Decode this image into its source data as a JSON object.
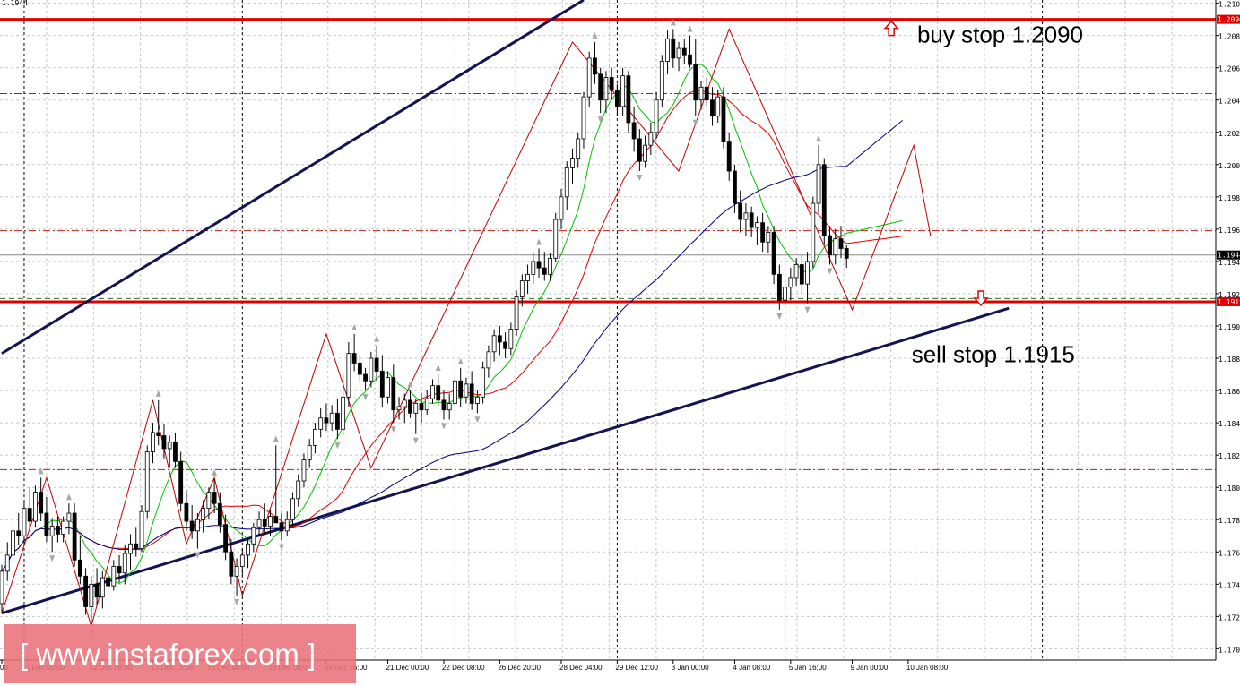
{
  "chart_data": {
    "type": "candlestick",
    "symbol_price_label": "1.1944",
    "ylim": [
      1.1693,
      1.2102
    ],
    "y_ticks": [
      "1.210",
      "1.208",
      "1.206",
      "1.204",
      "1.202",
      "1.200",
      "1.198",
      "1.196",
      "1.194",
      "1.192",
      "1.190",
      "1.188",
      "1.186",
      "1.184",
      "1.182",
      "1.180",
      "1.178",
      "1.176",
      "1.174",
      "1.172",
      "1.170"
    ],
    "x_labels": [
      {
        "label": "00",
        "bar": 0
      },
      {
        "label": "11 Dec 00:00",
        "bar": 4
      },
      {
        "label": "12 Dec 08:00",
        "bar": 16
      },
      {
        "label": "13 Dec 16:00",
        "bar": 27
      },
      {
        "label": "15 Dec 00:00",
        "bar": 37
      },
      {
        "label": "18 Dec 08:00",
        "bar": 48
      },
      {
        "label": "19 Dec 16:00",
        "bar": 58
      },
      {
        "label": "21 Dec 00:00",
        "bar": 69
      },
      {
        "label": "22 Dec 08:00",
        "bar": 79
      },
      {
        "label": "26 Dec 20:00",
        "bar": 89
      },
      {
        "label": "28 Dec 04:00",
        "bar": 100
      },
      {
        "label": "29 Dec 12:00",
        "bar": 110
      },
      {
        "label": "3 Jan 00:00",
        "bar": 120
      },
      {
        "label": "4 Jan 08:00",
        "bar": 131
      },
      {
        "label": "5 Jan 16:00",
        "bar": 141
      },
      {
        "label": "9 Jan 00:00",
        "bar": 152
      },
      {
        "label": "10 Jan 08:00",
        "bar": 162
      }
    ],
    "candles": [
      {
        "o": 1.1728,
        "h": 1.1752,
        "l": 1.1722,
        "c": 1.1748
      },
      {
        "o": 1.1748,
        "h": 1.1766,
        "l": 1.1742,
        "c": 1.1758
      },
      {
        "o": 1.1758,
        "h": 1.178,
        "l": 1.1751,
        "c": 1.1773
      },
      {
        "o": 1.1773,
        "h": 1.1784,
        "l": 1.1764,
        "c": 1.177
      },
      {
        "o": 1.177,
        "h": 1.1792,
        "l": 1.1765,
        "c": 1.1787
      },
      {
        "o": 1.1787,
        "h": 1.18,
        "l": 1.1774,
        "c": 1.1779
      },
      {
        "o": 1.1779,
        "h": 1.1801,
        "l": 1.1775,
        "c": 1.1797
      },
      {
        "o": 1.1797,
        "h": 1.1806,
        "l": 1.1779,
        "c": 1.1784
      },
      {
        "o": 1.1784,
        "h": 1.1794,
        "l": 1.1766,
        "c": 1.177
      },
      {
        "o": 1.177,
        "h": 1.1781,
        "l": 1.176,
        "c": 1.1776
      },
      {
        "o": 1.1776,
        "h": 1.1782,
        "l": 1.1766,
        "c": 1.1771
      },
      {
        "o": 1.1771,
        "h": 1.1782,
        "l": 1.1766,
        "c": 1.1779
      },
      {
        "o": 1.1779,
        "h": 1.179,
        "l": 1.1771,
        "c": 1.1784
      },
      {
        "o": 1.1784,
        "h": 1.179,
        "l": 1.1751,
        "c": 1.1755
      },
      {
        "o": 1.1755,
        "h": 1.177,
        "l": 1.174,
        "c": 1.1745
      },
      {
        "o": 1.1745,
        "h": 1.175,
        "l": 1.1721,
        "c": 1.1726
      },
      {
        "o": 1.1726,
        "h": 1.1745,
        "l": 1.1714,
        "c": 1.174
      },
      {
        "o": 1.174,
        "h": 1.175,
        "l": 1.1727,
        "c": 1.1732
      },
      {
        "o": 1.1732,
        "h": 1.1748,
        "l": 1.1725,
        "c": 1.1744
      },
      {
        "o": 1.1744,
        "h": 1.1752,
        "l": 1.1735,
        "c": 1.1739
      },
      {
        "o": 1.1739,
        "h": 1.1755,
        "l": 1.1736,
        "c": 1.1751
      },
      {
        "o": 1.1751,
        "h": 1.1758,
        "l": 1.1741,
        "c": 1.1747
      },
      {
        "o": 1.1747,
        "h": 1.1764,
        "l": 1.174,
        "c": 1.1759
      },
      {
        "o": 1.1759,
        "h": 1.1771,
        "l": 1.1749,
        "c": 1.1765
      },
      {
        "o": 1.1765,
        "h": 1.1775,
        "l": 1.1757,
        "c": 1.1762
      },
      {
        "o": 1.1762,
        "h": 1.1789,
        "l": 1.176,
        "c": 1.1785
      },
      {
        "o": 1.1785,
        "h": 1.1826,
        "l": 1.1781,
        "c": 1.1822
      },
      {
        "o": 1.1822,
        "h": 1.184,
        "l": 1.1815,
        "c": 1.1834
      },
      {
        "o": 1.1834,
        "h": 1.1854,
        "l": 1.1826,
        "c": 1.1832
      },
      {
        "o": 1.1832,
        "h": 1.1839,
        "l": 1.1818,
        "c": 1.1824
      },
      {
        "o": 1.1824,
        "h": 1.1832,
        "l": 1.1812,
        "c": 1.1828
      },
      {
        "o": 1.1828,
        "h": 1.1834,
        "l": 1.1812,
        "c": 1.1816
      },
      {
        "o": 1.1816,
        "h": 1.1822,
        "l": 1.1785,
        "c": 1.179
      },
      {
        "o": 1.179,
        "h": 1.1798,
        "l": 1.1773,
        "c": 1.1779
      },
      {
        "o": 1.1779,
        "h": 1.1789,
        "l": 1.1768,
        "c": 1.1773
      },
      {
        "o": 1.1773,
        "h": 1.1784,
        "l": 1.1762,
        "c": 1.178
      },
      {
        "o": 1.178,
        "h": 1.1792,
        "l": 1.1772,
        "c": 1.1787
      },
      {
        "o": 1.1787,
        "h": 1.18,
        "l": 1.178,
        "c": 1.1797
      },
      {
        "o": 1.1797,
        "h": 1.1805,
        "l": 1.1784,
        "c": 1.179
      },
      {
        "o": 1.179,
        "h": 1.1797,
        "l": 1.1772,
        "c": 1.1777
      },
      {
        "o": 1.1777,
        "h": 1.1783,
        "l": 1.1755,
        "c": 1.176
      },
      {
        "o": 1.176,
        "h": 1.1768,
        "l": 1.174,
        "c": 1.1745
      },
      {
        "o": 1.1745,
        "h": 1.1756,
        "l": 1.1733,
        "c": 1.1751
      },
      {
        "o": 1.1751,
        "h": 1.1762,
        "l": 1.1745,
        "c": 1.1758
      },
      {
        "o": 1.1758,
        "h": 1.1769,
        "l": 1.175,
        "c": 1.1765
      },
      {
        "o": 1.1765,
        "h": 1.1778,
        "l": 1.176,
        "c": 1.1775
      },
      {
        "o": 1.1775,
        "h": 1.1785,
        "l": 1.177,
        "c": 1.178
      },
      {
        "o": 1.178,
        "h": 1.179,
        "l": 1.1771,
        "c": 1.1776
      },
      {
        "o": 1.1776,
        "h": 1.1786,
        "l": 1.177,
        "c": 1.1782
      },
      {
        "o": 1.1782,
        "h": 1.1826,
        "l": 1.1778,
        "c": 1.1778
      },
      {
        "o": 1.1778,
        "h": 1.1784,
        "l": 1.1767,
        "c": 1.1773
      },
      {
        "o": 1.1773,
        "h": 1.1785,
        "l": 1.177,
        "c": 1.178
      },
      {
        "o": 1.178,
        "h": 1.1797,
        "l": 1.1776,
        "c": 1.1793
      },
      {
        "o": 1.1793,
        "h": 1.1808,
        "l": 1.1788,
        "c": 1.1804
      },
      {
        "o": 1.1804,
        "h": 1.1821,
        "l": 1.18,
        "c": 1.1817
      },
      {
        "o": 1.1817,
        "h": 1.183,
        "l": 1.1812,
        "c": 1.1826
      },
      {
        "o": 1.1826,
        "h": 1.184,
        "l": 1.1821,
        "c": 1.1836
      },
      {
        "o": 1.1836,
        "h": 1.1849,
        "l": 1.1831,
        "c": 1.1843
      },
      {
        "o": 1.1843,
        "h": 1.1852,
        "l": 1.1835,
        "c": 1.184
      },
      {
        "o": 1.184,
        "h": 1.1851,
        "l": 1.1835,
        "c": 1.1846
      },
      {
        "o": 1.1846,
        "h": 1.1855,
        "l": 1.183,
        "c": 1.1836
      },
      {
        "o": 1.1836,
        "h": 1.187,
        "l": 1.1832,
        "c": 1.1856
      },
      {
        "o": 1.1856,
        "h": 1.189,
        "l": 1.185,
        "c": 1.1883
      },
      {
        "o": 1.1883,
        "h": 1.1895,
        "l": 1.1872,
        "c": 1.1877
      },
      {
        "o": 1.1877,
        "h": 1.1882,
        "l": 1.1865,
        "c": 1.187
      },
      {
        "o": 1.187,
        "h": 1.1874,
        "l": 1.186,
        "c": 1.1866
      },
      {
        "o": 1.1866,
        "h": 1.1884,
        "l": 1.1862,
        "c": 1.188
      },
      {
        "o": 1.188,
        "h": 1.1888,
        "l": 1.1866,
        "c": 1.1872
      },
      {
        "o": 1.1872,
        "h": 1.1882,
        "l": 1.185,
        "c": 1.1856
      },
      {
        "o": 1.1856,
        "h": 1.1872,
        "l": 1.1852,
        "c": 1.1868
      },
      {
        "o": 1.1868,
        "h": 1.1876,
        "l": 1.184,
        "c": 1.1848
      },
      {
        "o": 1.1848,
        "h": 1.1856,
        "l": 1.1842,
        "c": 1.185
      },
      {
        "o": 1.185,
        "h": 1.1858,
        "l": 1.184,
        "c": 1.1854
      },
      {
        "o": 1.1854,
        "h": 1.186,
        "l": 1.1843,
        "c": 1.1846
      },
      {
        "o": 1.1846,
        "h": 1.1855,
        "l": 1.1833,
        "c": 1.1852
      },
      {
        "o": 1.1852,
        "h": 1.1858,
        "l": 1.184,
        "c": 1.1848
      },
      {
        "o": 1.1848,
        "h": 1.186,
        "l": 1.1845,
        "c": 1.1855
      },
      {
        "o": 1.1855,
        "h": 1.1867,
        "l": 1.1852,
        "c": 1.1863
      },
      {
        "o": 1.1863,
        "h": 1.187,
        "l": 1.185,
        "c": 1.1854
      },
      {
        "o": 1.1854,
        "h": 1.186,
        "l": 1.1842,
        "c": 1.1848
      },
      {
        "o": 1.1848,
        "h": 1.1858,
        "l": 1.1842,
        "c": 1.1852
      },
      {
        "o": 1.1852,
        "h": 1.187,
        "l": 1.185,
        "c": 1.1866
      },
      {
        "o": 1.1866,
        "h": 1.1874,
        "l": 1.185,
        "c": 1.1856
      },
      {
        "o": 1.1856,
        "h": 1.1868,
        "l": 1.1852,
        "c": 1.1864
      },
      {
        "o": 1.1864,
        "h": 1.1872,
        "l": 1.1848,
        "c": 1.1852
      },
      {
        "o": 1.1852,
        "h": 1.186,
        "l": 1.1846,
        "c": 1.1856
      },
      {
        "o": 1.1856,
        "h": 1.1878,
        "l": 1.1852,
        "c": 1.1874
      },
      {
        "o": 1.1874,
        "h": 1.1888,
        "l": 1.1868,
        "c": 1.1884
      },
      {
        "o": 1.1884,
        "h": 1.1898,
        "l": 1.1878,
        "c": 1.1894
      },
      {
        "o": 1.1894,
        "h": 1.19,
        "l": 1.1882,
        "c": 1.189
      },
      {
        "o": 1.189,
        "h": 1.1896,
        "l": 1.188,
        "c": 1.1886
      },
      {
        "o": 1.1886,
        "h": 1.1902,
        "l": 1.1882,
        "c": 1.1898
      },
      {
        "o": 1.1898,
        "h": 1.1922,
        "l": 1.1894,
        "c": 1.1918
      },
      {
        "o": 1.1918,
        "h": 1.1932,
        "l": 1.1912,
        "c": 1.1928
      },
      {
        "o": 1.1928,
        "h": 1.1938,
        "l": 1.192,
        "c": 1.1932
      },
      {
        "o": 1.1932,
        "h": 1.1945,
        "l": 1.1926,
        "c": 1.194
      },
      {
        "o": 1.194,
        "h": 1.1948,
        "l": 1.193,
        "c": 1.1936
      },
      {
        "o": 1.1936,
        "h": 1.1946,
        "l": 1.1928,
        "c": 1.1932
      },
      {
        "o": 1.1932,
        "h": 1.1945,
        "l": 1.1928,
        "c": 1.1942
      },
      {
        "o": 1.1942,
        "h": 1.197,
        "l": 1.194,
        "c": 1.1966
      },
      {
        "o": 1.1966,
        "h": 1.1985,
        "l": 1.196,
        "c": 1.198
      },
      {
        "o": 1.198,
        "h": 1.2002,
        "l": 1.1972,
        "c": 1.1998
      },
      {
        "o": 1.1998,
        "h": 1.201,
        "l": 1.1988,
        "c": 1.2004
      },
      {
        "o": 1.2004,
        "h": 1.202,
        "l": 1.1998,
        "c": 1.2016
      },
      {
        "o": 1.2016,
        "h": 1.2045,
        "l": 1.201,
        "c": 1.2042
      },
      {
        "o": 1.2042,
        "h": 1.207,
        "l": 1.2036,
        "c": 1.2066
      },
      {
        "o": 1.2066,
        "h": 1.2076,
        "l": 1.205,
        "c": 1.2056
      },
      {
        "o": 1.2056,
        "h": 1.206,
        "l": 1.2032,
        "c": 1.204
      },
      {
        "o": 1.204,
        "h": 1.2058,
        "l": 1.2032,
        "c": 1.2054
      },
      {
        "o": 1.2054,
        "h": 1.206,
        "l": 1.204,
        "c": 1.2046
      },
      {
        "o": 1.2046,
        "h": 1.205,
        "l": 1.203,
        "c": 1.2036
      },
      {
        "o": 1.2036,
        "h": 1.206,
        "l": 1.203,
        "c": 1.2055
      },
      {
        "o": 1.2055,
        "h": 1.2058,
        "l": 1.202,
        "c": 1.2026
      },
      {
        "o": 1.2026,
        "h": 1.2036,
        "l": 1.2008,
        "c": 1.2016
      },
      {
        "o": 1.2016,
        "h": 1.2022,
        "l": 1.1996,
        "c": 1.2002
      },
      {
        "o": 1.2002,
        "h": 1.2018,
        "l": 1.1998,
        "c": 1.2012
      },
      {
        "o": 1.2012,
        "h": 1.2026,
        "l": 1.2006,
        "c": 1.202
      },
      {
        "o": 1.202,
        "h": 1.2045,
        "l": 1.2016,
        "c": 1.204
      },
      {
        "o": 1.204,
        "h": 1.2068,
        "l": 1.2036,
        "c": 1.2064
      },
      {
        "o": 1.2064,
        "h": 1.2083,
        "l": 1.2056,
        "c": 1.2078
      },
      {
        "o": 1.2078,
        "h": 1.2084,
        "l": 1.206,
        "c": 1.2066
      },
      {
        "o": 1.2066,
        "h": 1.2076,
        "l": 1.2058,
        "c": 1.2072
      },
      {
        "o": 1.2072,
        "h": 1.2078,
        "l": 1.2062,
        "c": 1.2068
      },
      {
        "o": 1.2068,
        "h": 1.208,
        "l": 1.206,
        "c": 1.2062
      },
      {
        "o": 1.2062,
        "h": 1.2078,
        "l": 1.203,
        "c": 1.204
      },
      {
        "o": 1.204,
        "h": 1.2052,
        "l": 1.2034,
        "c": 1.2048
      },
      {
        "o": 1.2048,
        "h": 1.2054,
        "l": 1.2036,
        "c": 1.204
      },
      {
        "o": 1.204,
        "h": 1.2048,
        "l": 1.2024,
        "c": 1.203
      },
      {
        "o": 1.203,
        "h": 1.2046,
        "l": 1.2026,
        "c": 1.2042
      },
      {
        "o": 1.2042,
        "h": 1.2048,
        "l": 1.201,
        "c": 1.2014
      },
      {
        "o": 1.2014,
        "h": 1.202,
        "l": 1.199,
        "c": 1.1996
      },
      {
        "o": 1.1996,
        "h": 1.2,
        "l": 1.197,
        "c": 1.1976
      },
      {
        "o": 1.1976,
        "h": 1.1984,
        "l": 1.1958,
        "c": 1.1966
      },
      {
        "o": 1.1966,
        "h": 1.1976,
        "l": 1.1956,
        "c": 1.197
      },
      {
        "o": 1.197,
        "h": 1.1974,
        "l": 1.1955,
        "c": 1.1961
      },
      {
        "o": 1.1961,
        "h": 1.1968,
        "l": 1.195,
        "c": 1.1964
      },
      {
        "o": 1.1964,
        "h": 1.197,
        "l": 1.1946,
        "c": 1.1952
      },
      {
        "o": 1.1952,
        "h": 1.1962,
        "l": 1.1945,
        "c": 1.1958
      },
      {
        "o": 1.1958,
        "h": 1.1962,
        "l": 1.1926,
        "c": 1.1932
      },
      {
        "o": 1.1932,
        "h": 1.1938,
        "l": 1.191,
        "c": 1.1916
      },
      {
        "o": 1.1916,
        "h": 1.1928,
        "l": 1.1912,
        "c": 1.1924
      },
      {
        "o": 1.1924,
        "h": 1.1936,
        "l": 1.1916,
        "c": 1.193
      },
      {
        "o": 1.193,
        "h": 1.1942,
        "l": 1.1925,
        "c": 1.1938
      },
      {
        "o": 1.1938,
        "h": 1.1944,
        "l": 1.192,
        "c": 1.1926
      },
      {
        "o": 1.1926,
        "h": 1.1946,
        "l": 1.1914,
        "c": 1.194
      },
      {
        "o": 1.194,
        "h": 1.198,
        "l": 1.1936,
        "c": 1.1976
      },
      {
        "o": 1.1976,
        "h": 1.2012,
        "l": 1.197,
        "c": 1.2
      },
      {
        "o": 1.2,
        "h": 1.2004,
        "l": 1.195,
        "c": 1.1956
      },
      {
        "o": 1.1956,
        "h": 1.1962,
        "l": 1.1938,
        "c": 1.1944
      },
      {
        "o": 1.1944,
        "h": 1.196,
        "l": 1.1938,
        "c": 1.1954
      },
      {
        "o": 1.1954,
        "h": 1.1962,
        "l": 1.1942,
        "c": 1.1948
      },
      {
        "o": 1.1948,
        "h": 1.195,
        "l": 1.1936,
        "c": 1.1942
      }
    ],
    "zigzag_points": [
      [
        0,
        1.1722
      ],
      [
        8,
        1.1806
      ],
      [
        16,
        1.1714
      ],
      [
        27,
        1.1854
      ],
      [
        33,
        1.1765
      ],
      [
        38,
        1.1806
      ],
      [
        43,
        1.1733
      ],
      [
        58,
        1.1895
      ],
      [
        66,
        1.1812
      ],
      [
        102,
        1.2076
      ],
      [
        121,
        1.1996
      ],
      [
        130,
        1.2084
      ],
      [
        152,
        1.191
      ],
      [
        163,
        1.2012
      ],
      [
        166,
        1.1956
      ]
    ],
    "moving_averages": [
      {
        "color": "#00c000",
        "period": 8
      },
      {
        "color": "#e00000",
        "period": 21
      },
      {
        "color": "#000080",
        "period": 55
      }
    ],
    "horizontal_lines": [
      {
        "price": 1.209,
        "color": "#e00000",
        "style": "solid",
        "label": "1.2090"
      },
      {
        "price": 1.1915,
        "color": "#e00000",
        "style": "solid",
        "label": "1.1915"
      },
      {
        "price": 1.2044,
        "color": "#b0201a",
        "style": "dashdot"
      },
      {
        "price": 1.1959,
        "color": "#b0201a",
        "style": "dashdot"
      },
      {
        "price": 1.1811,
        "color": "#b0201a",
        "style": "dashdot"
      },
      {
        "price": 1.1944,
        "color": "#888888",
        "style": "solid"
      },
      {
        "price": 1.1917,
        "color": "#2f6f2f",
        "style": "dash"
      }
    ],
    "trendlines": [
      {
        "p1": [
          0,
          1.1722
        ],
        "p2": [
          180,
          1.1911
        ],
        "color": "#141450"
      },
      {
        "p1": [
          0,
          1.1883
        ],
        "p2": [
          104,
          1.2102
        ],
        "color": "#141450"
      }
    ],
    "annotations": [
      {
        "text": "buy stop 1.2090",
        "price": 1.208,
        "bar": 154,
        "arrow": "up"
      },
      {
        "text": "sell stop 1.1915",
        "price": 1.1882,
        "bar": 153,
        "arrow": "down"
      }
    ],
    "current_price_label": "1.1944",
    "grid": true,
    "watermark": "[ www.instaforex.com ]"
  }
}
